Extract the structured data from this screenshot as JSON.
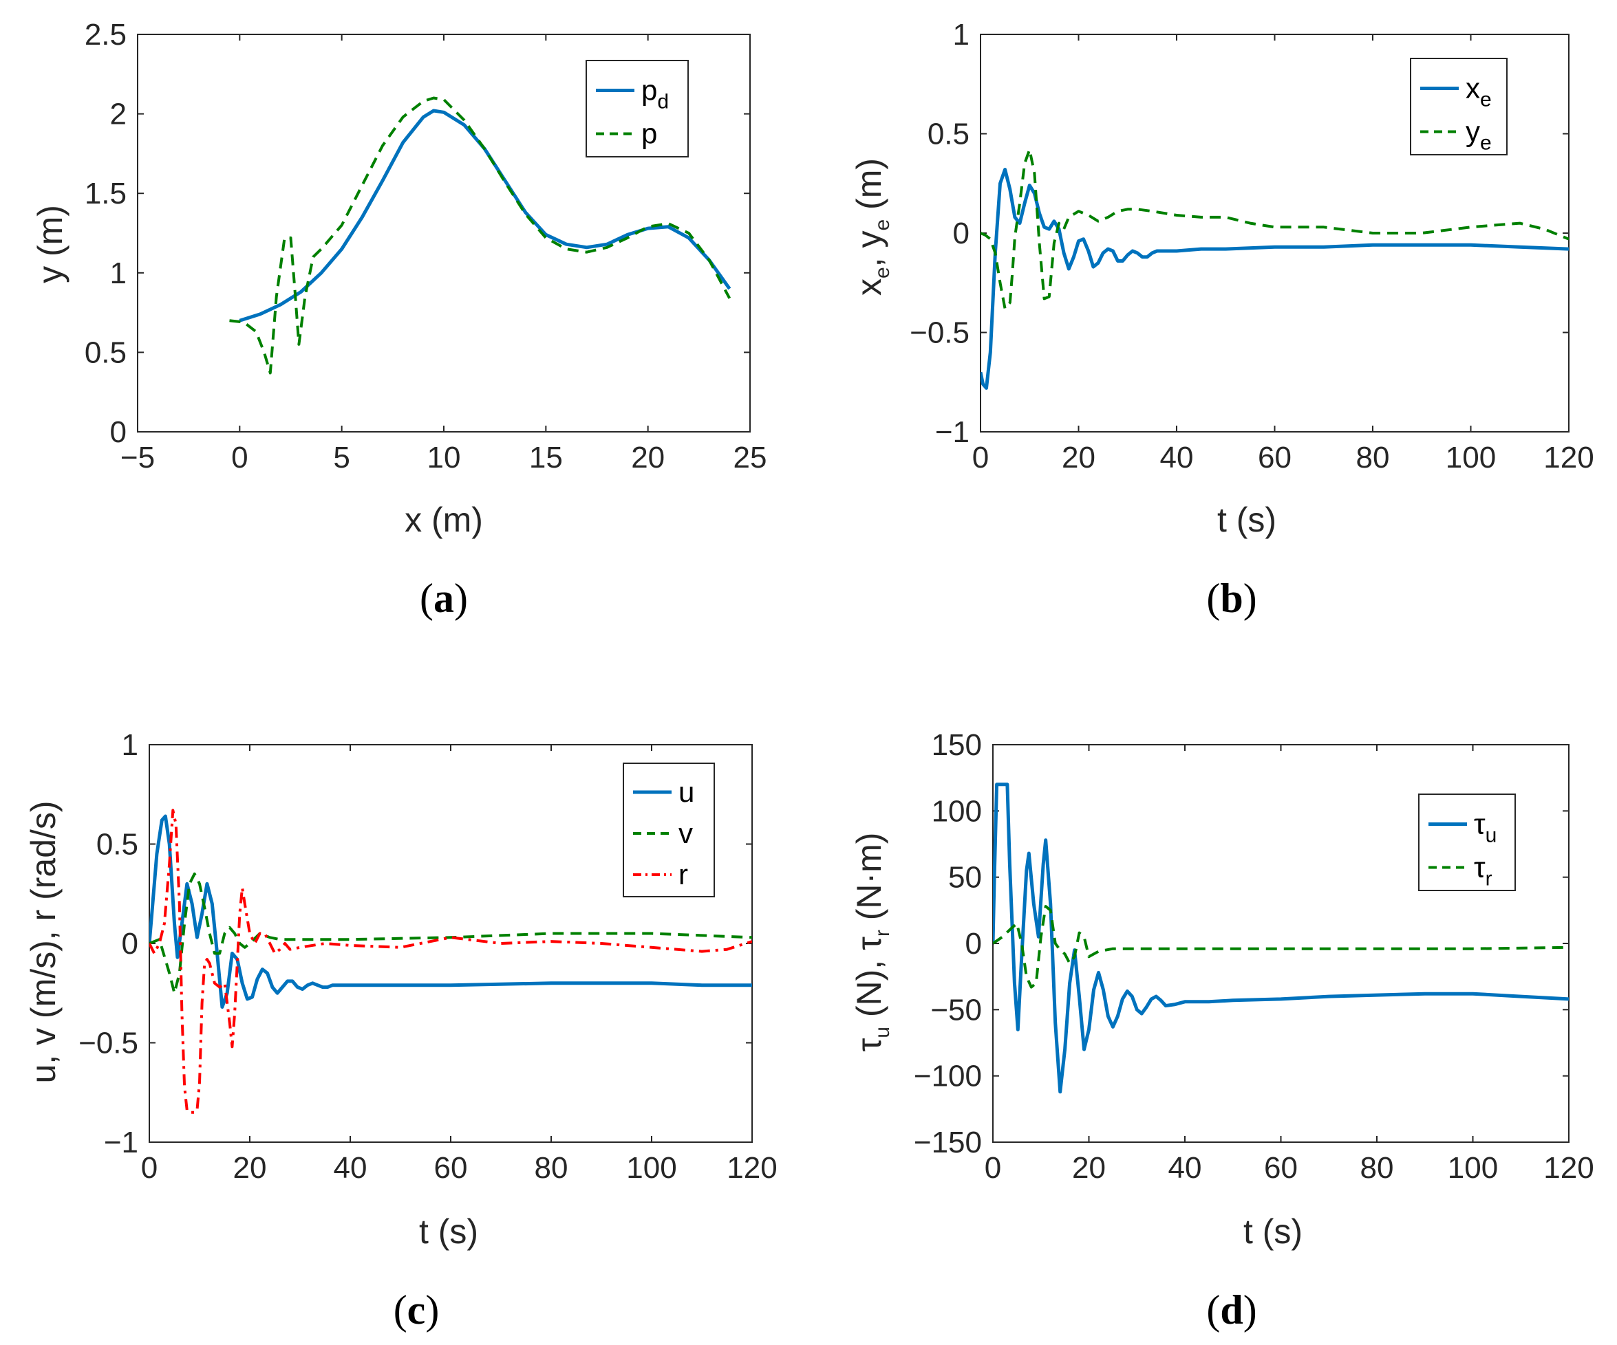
{
  "colors": {
    "blue": "#0072BD",
    "green": "#008000",
    "red": "#FF0000",
    "axis": "#262626"
  },
  "chart_data": [
    {
      "id": "a",
      "type": "line",
      "caption": "a",
      "xlabel": "x (m)",
      "ylabel": "y (m)",
      "xlim": [
        -5,
        25
      ],
      "ylim": [
        0,
        2.5
      ],
      "xticks": [
        -5,
        0,
        5,
        10,
        15,
        20,
        25
      ],
      "yticks": [
        0,
        0.5,
        1,
        1.5,
        2,
        2.5
      ],
      "xtick_labels": [
        "−5",
        "0",
        "5",
        "10",
        "15",
        "20",
        "25"
      ],
      "ytick_labels": [
        "0",
        "0.5",
        "1",
        "1.5",
        "2",
        "2.5"
      ],
      "legend": [
        {
          "main": "p",
          "sub": "d",
          "style": "solid",
          "color": "blue"
        },
        {
          "main": "p",
          "sub": "",
          "style": "dashed",
          "color": "green"
        }
      ],
      "series": [
        {
          "name": "pd",
          "style": "solid",
          "color": "blue",
          "x": [
            0,
            1,
            2,
            3,
            4,
            5,
            6,
            7,
            8,
            9,
            9.5,
            10,
            11,
            12,
            13,
            14,
            15,
            16,
            17,
            18,
            19,
            20,
            21,
            22,
            23,
            24
          ],
          "y": [
            0.7,
            0.74,
            0.8,
            0.88,
            1.0,
            1.15,
            1.35,
            1.58,
            1.82,
            1.98,
            2.02,
            2.01,
            1.93,
            1.78,
            1.58,
            1.38,
            1.24,
            1.18,
            1.16,
            1.18,
            1.24,
            1.28,
            1.29,
            1.22,
            1.08,
            0.9
          ]
        },
        {
          "name": "p",
          "style": "dashed",
          "color": "green",
          "x": [
            -0.5,
            0.2,
            0.8,
            1.2,
            1.5,
            1.8,
            2.2,
            2.5,
            2.7,
            2.9,
            3.2,
            3.6,
            4.0,
            5,
            6,
            7,
            8,
            9,
            9.5,
            10,
            11,
            12,
            13,
            14,
            15,
            16,
            17,
            18,
            19,
            20,
            21,
            22,
            23,
            24
          ],
          "y": [
            0.7,
            0.69,
            0.63,
            0.5,
            0.37,
            0.85,
            1.22,
            1.22,
            0.9,
            0.55,
            0.85,
            1.1,
            1.15,
            1.3,
            1.55,
            1.8,
            1.98,
            2.08,
            2.1,
            2.09,
            1.96,
            1.78,
            1.57,
            1.37,
            1.22,
            1.15,
            1.13,
            1.16,
            1.22,
            1.29,
            1.31,
            1.25,
            1.08,
            0.84
          ]
        }
      ]
    },
    {
      "id": "b",
      "type": "line",
      "caption": "b",
      "xlabel": "t (s)",
      "ylabel_parts": {
        "a": "x",
        "a_sub": "e",
        "sep": ", ",
        "b": "y",
        "b_sub": "e",
        "unit": " (m)"
      },
      "xlim": [
        0,
        120
      ],
      "ylim": [
        -1,
        1
      ],
      "xticks": [
        0,
        20,
        40,
        60,
        80,
        100,
        120
      ],
      "yticks": [
        -1,
        -0.5,
        0,
        0.5,
        1
      ],
      "xtick_labels": [
        "0",
        "20",
        "40",
        "60",
        "80",
        "100",
        "120"
      ],
      "ytick_labels": [
        "−1",
        "−0.5",
        "0",
        "0.5",
        "1"
      ],
      "legend": [
        {
          "main": "x",
          "sub": "e",
          "style": "solid",
          "color": "blue"
        },
        {
          "main": "y",
          "sub": "e",
          "style": "dashed",
          "color": "green"
        }
      ],
      "series": [
        {
          "name": "xe",
          "style": "solid",
          "color": "blue",
          "x": [
            0,
            0.5,
            1.2,
            2,
            3,
            4,
            5,
            6,
            7,
            8,
            9,
            10,
            11,
            12,
            13,
            14,
            15,
            16,
            17,
            18,
            19,
            20,
            21,
            22,
            23,
            24,
            25,
            26,
            27,
            28,
            29,
            30,
            31,
            32,
            33,
            34,
            35,
            36,
            38,
            40,
            45,
            50,
            60,
            70,
            80,
            90,
            100,
            110,
            120
          ],
          "y": [
            -0.7,
            -0.76,
            -0.78,
            -0.6,
            -0.1,
            0.25,
            0.32,
            0.22,
            0.08,
            0.05,
            0.15,
            0.24,
            0.2,
            0.1,
            0.03,
            0.02,
            0.06,
            0.02,
            -0.1,
            -0.18,
            -0.12,
            -0.04,
            -0.03,
            -0.09,
            -0.17,
            -0.15,
            -0.1,
            -0.08,
            -0.09,
            -0.14,
            -0.14,
            -0.11,
            -0.09,
            -0.1,
            -0.12,
            -0.12,
            -0.1,
            -0.09,
            -0.09,
            -0.09,
            -0.08,
            -0.08,
            -0.07,
            -0.07,
            -0.06,
            -0.06,
            -0.06,
            -0.07,
            -0.08
          ]
        },
        {
          "name": "ye",
          "style": "dashed",
          "color": "green",
          "x": [
            0,
            1,
            2,
            3,
            4,
            5,
            6,
            6.5,
            7,
            8,
            9,
            10,
            11,
            12,
            13,
            14,
            15,
            16,
            17,
            18,
            20,
            22,
            24,
            26,
            28,
            30,
            32,
            35,
            40,
            45,
            50,
            55,
            60,
            70,
            80,
            90,
            100,
            105,
            110,
            115,
            120
          ],
          "y": [
            0.0,
            -0.01,
            -0.03,
            -0.1,
            -0.25,
            -0.38,
            -0.35,
            -0.2,
            -0.02,
            0.15,
            0.35,
            0.42,
            0.3,
            -0.05,
            -0.33,
            -0.32,
            -0.05,
            0.05,
            0.02,
            0.08,
            0.11,
            0.09,
            0.06,
            0.08,
            0.11,
            0.12,
            0.12,
            0.11,
            0.09,
            0.08,
            0.08,
            0.05,
            0.03,
            0.03,
            0.0,
            0.0,
            0.03,
            0.04,
            0.05,
            0.02,
            -0.03
          ]
        }
      ]
    },
    {
      "id": "c",
      "type": "line",
      "caption": "c",
      "xlabel": "t (s)",
      "ylabel": "u, v (m/s), r (rad/s)",
      "xlim": [
        0,
        120
      ],
      "ylim": [
        -1,
        1
      ],
      "xticks": [
        0,
        20,
        40,
        60,
        80,
        100,
        120
      ],
      "yticks": [
        -1,
        -0.5,
        0,
        0.5,
        1
      ],
      "xtick_labels": [
        "0",
        "20",
        "40",
        "60",
        "80",
        "100",
        "120"
      ],
      "ytick_labels": [
        "−1",
        "−0.5",
        "0",
        "0.5",
        "1"
      ],
      "legend": [
        {
          "main": "u",
          "sub": "",
          "style": "solid",
          "color": "blue"
        },
        {
          "main": "v",
          "sub": "",
          "style": "dashed",
          "color": "green"
        },
        {
          "main": "r",
          "sub": "",
          "style": "dashdot",
          "color": "red"
        }
      ],
      "series": [
        {
          "name": "u",
          "style": "solid",
          "color": "blue",
          "x": [
            0,
            0.5,
            1.5,
            2.5,
            3.2,
            4,
            5,
            5.6,
            6.5,
            7.5,
            8.5,
            9.5,
            10.5,
            11.5,
            12.5,
            13.5,
            14.5,
            15.5,
            16.5,
            17.5,
            18.5,
            19.5,
            20.5,
            21.5,
            22.5,
            23.5,
            24.5,
            25.5,
            26.5,
            27.5,
            28.5,
            29.5,
            30.5,
            31.5,
            32.5,
            33.5,
            34.5,
            35.5,
            36.5,
            38,
            40,
            45,
            50,
            60,
            80,
            90,
            100,
            110,
            120
          ],
          "y": [
            0.0,
            0.15,
            0.45,
            0.62,
            0.64,
            0.5,
            0.1,
            -0.07,
            0.1,
            0.3,
            0.2,
            0.03,
            0.15,
            0.3,
            0.2,
            -0.05,
            -0.32,
            -0.25,
            -0.05,
            -0.08,
            -0.2,
            -0.28,
            -0.27,
            -0.18,
            -0.13,
            -0.15,
            -0.22,
            -0.25,
            -0.22,
            -0.19,
            -0.19,
            -0.22,
            -0.23,
            -0.21,
            -0.2,
            -0.21,
            -0.22,
            -0.22,
            -0.21,
            -0.21,
            -0.21,
            -0.21,
            -0.21,
            -0.21,
            -0.2,
            -0.2,
            -0.2,
            -0.21,
            -0.21
          ]
        },
        {
          "name": "v",
          "style": "dashed",
          "color": "green",
          "x": [
            0,
            2,
            4,
            5,
            6,
            7,
            8,
            9,
            10,
            11,
            12,
            13,
            14,
            15,
            16,
            17,
            18,
            19,
            20,
            22,
            24,
            26,
            30,
            40,
            60,
            80,
            100,
            110,
            120
          ],
          "y": [
            0.0,
            0.02,
            -0.15,
            -0.25,
            -0.15,
            0.1,
            0.3,
            0.35,
            0.3,
            0.18,
            0.05,
            -0.05,
            -0.05,
            0.05,
            0.08,
            0.05,
            0.0,
            -0.02,
            0.0,
            0.05,
            0.03,
            0.02,
            0.02,
            0.02,
            0.03,
            0.05,
            0.05,
            0.04,
            0.03
          ]
        },
        {
          "name": "r",
          "style": "dashdot",
          "color": "red",
          "x": [
            0,
            1,
            2,
            3,
            4,
            4.7,
            5.3,
            6,
            6.5,
            7,
            7.5,
            8,
            8.5,
            9,
            9.5,
            10,
            10.5,
            11,
            11.5,
            12,
            13,
            14,
            15,
            16,
            16.5,
            17,
            17.5,
            18,
            18.5,
            19,
            20,
            21,
            22,
            23,
            24,
            25,
            26,
            27,
            28,
            30,
            35,
            40,
            50,
            60,
            70,
            80,
            90,
            100,
            110,
            115,
            120
          ],
          "y": [
            0.0,
            -0.05,
            0.0,
            0.1,
            0.4,
            0.67,
            0.6,
            0.2,
            -0.35,
            -0.72,
            -0.84,
            -0.85,
            -0.85,
            -0.85,
            -0.84,
            -0.7,
            -0.3,
            -0.1,
            -0.08,
            -0.1,
            -0.2,
            -0.22,
            -0.2,
            -0.4,
            -0.52,
            -0.35,
            -0.1,
            0.15,
            0.28,
            0.2,
            0.05,
            0.0,
            0.05,
            0.05,
            0.0,
            -0.05,
            -0.03,
            0.0,
            -0.03,
            -0.02,
            0.0,
            -0.01,
            -0.02,
            0.03,
            0.0,
            0.01,
            0.0,
            -0.02,
            -0.04,
            -0.03,
            0.01
          ]
        }
      ]
    },
    {
      "id": "d",
      "type": "line",
      "caption": "d",
      "xlabel": "t (s)",
      "ylabel_parts": {
        "a": "τ",
        "a_sub": "u",
        "a_unit": " (N), ",
        "b": "τ",
        "b_sub": "r",
        "unit": " (N·m)"
      },
      "xlim": [
        0,
        120
      ],
      "ylim": [
        -150,
        150
      ],
      "xticks": [
        0,
        20,
        40,
        60,
        80,
        100,
        120
      ],
      "yticks": [
        -150,
        -100,
        -50,
        0,
        50,
        100,
        150
      ],
      "xtick_labels": [
        "0",
        "20",
        "40",
        "60",
        "80",
        "100",
        "120"
      ],
      "ytick_labels": [
        "−150",
        "−100",
        "−50",
        "0",
        "50",
        "100",
        "150"
      ],
      "legend": [
        {
          "main": "τ",
          "sub": "u",
          "style": "solid",
          "color": "blue"
        },
        {
          "main": "τ",
          "sub": "r",
          "style": "dashed",
          "color": "green"
        }
      ],
      "series": [
        {
          "name": "tau_u",
          "style": "solid",
          "color": "blue",
          "x": [
            0,
            0.3,
            0.8,
            3.0,
            3.5,
            4.5,
            5.2,
            6,
            7,
            7.5,
            8.5,
            9.5,
            10.5,
            11,
            12,
            13,
            14,
            15,
            16,
            17,
            18,
            19,
            20,
            21,
            22,
            23,
            24,
            25,
            26,
            27,
            28,
            29,
            30,
            31,
            32,
            33,
            34,
            35,
            36,
            38,
            40,
            45,
            50,
            60,
            70,
            80,
            90,
            100,
            110,
            120
          ],
          "y": [
            0,
            50,
            120,
            120,
            60,
            -30,
            -65,
            -10,
            55,
            68,
            30,
            5,
            60,
            78,
            30,
            -60,
            -112,
            -80,
            -30,
            -5,
            -40,
            -80,
            -65,
            -35,
            -22,
            -35,
            -55,
            -63,
            -55,
            -42,
            -36,
            -40,
            -50,
            -53,
            -48,
            -42,
            -40,
            -43,
            -47,
            -46,
            -44,
            -44,
            -43,
            -42,
            -40,
            -39,
            -38,
            -38,
            -40,
            -42
          ]
        },
        {
          "name": "tau_r",
          "style": "dashed",
          "color": "green",
          "x": [
            0,
            2,
            4,
            5,
            6,
            7,
            8,
            9,
            10,
            11,
            12,
            13,
            14,
            15,
            16,
            17,
            18,
            19,
            20,
            22,
            25,
            30,
            40,
            60,
            80,
            100,
            120
          ],
          "y": [
            0,
            5,
            12,
            15,
            0,
            -25,
            -33,
            -30,
            5,
            28,
            25,
            0,
            -5,
            -8,
            -15,
            -10,
            8,
            5,
            -10,
            -6,
            -4,
            -4,
            -4,
            -4,
            -4,
            -4,
            -3
          ]
        }
      ]
    }
  ]
}
